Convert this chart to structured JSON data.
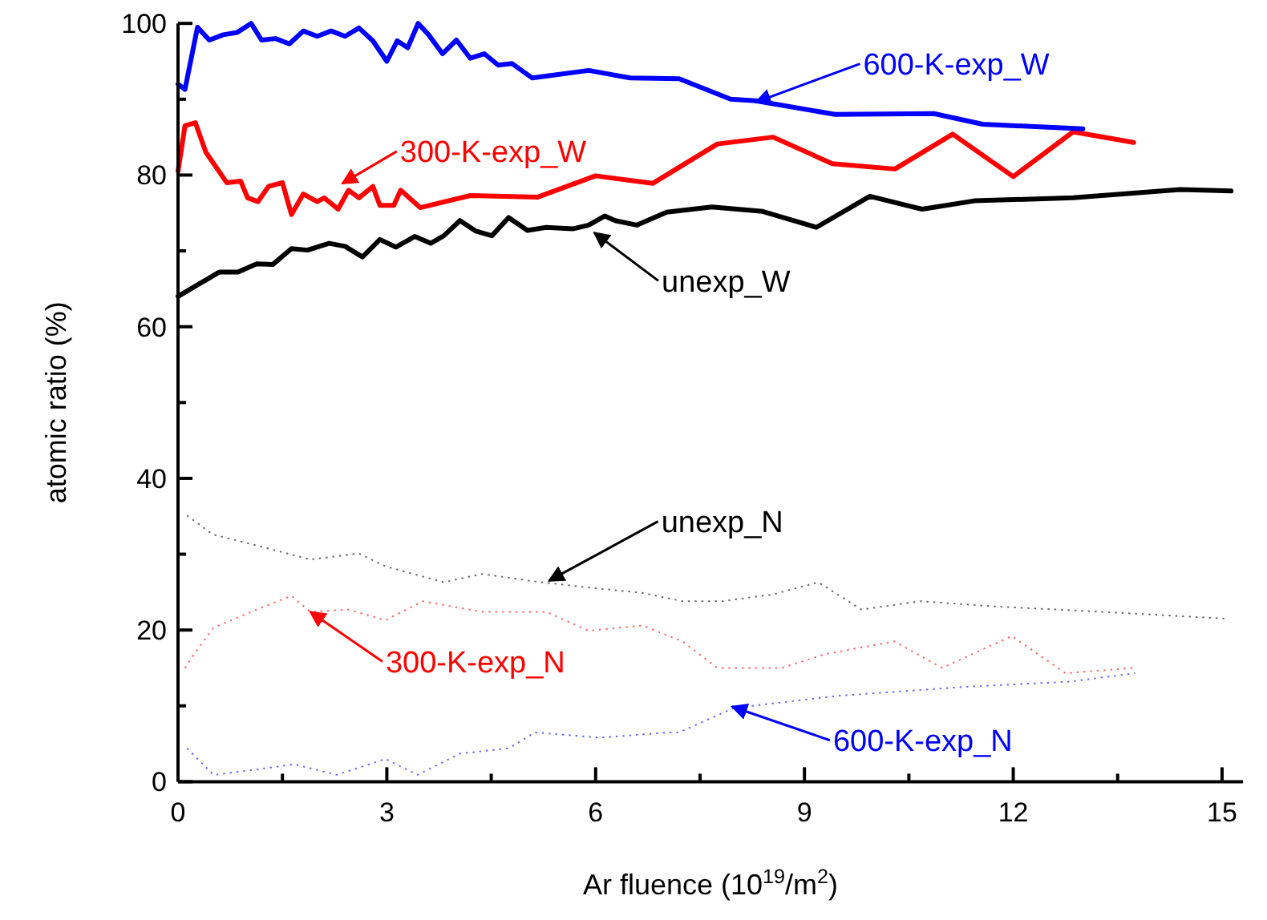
{
  "chart_data": {
    "type": "line",
    "xlabel": "Ar fluence (10$^{19}$/m$^{2}$)",
    "ylabel": "atomic ratio (%)",
    "xlim": [
      0,
      15.3
    ],
    "ylim": [
      0,
      100
    ],
    "xticks": [
      0,
      {
        "value": 1.5,
        "label": null
      },
      3,
      {
        "value": 4.5,
        "label": null
      },
      6,
      {
        "value": 7.5,
        "label": null
      },
      9,
      {
        "value": 10.5,
        "label": null
      },
      12,
      {
        "value": 13.5,
        "label": null
      },
      15
    ],
    "yticks": [
      0,
      {
        "value": 10,
        "label": null
      },
      20,
      {
        "value": 30,
        "label": null
      },
      40,
      {
        "value": 50,
        "label": null
      },
      60,
      {
        "value": 70,
        "label": null
      },
      80,
      {
        "value": 90,
        "label": null
      },
      100
    ],
    "grid": false,
    "series": [
      {
        "color": "#000000",
        "line_style": "solid",
        "x": [
          0,
          0.59,
          0.86,
          1.13,
          1.36,
          1.63,
          1.86,
          2.17,
          2.4,
          2.65,
          2.9,
          3.13,
          3.4,
          3.63,
          3.82,
          4.05,
          4.28,
          4.51,
          4.75,
          5.02,
          5.29,
          5.67,
          5.9,
          6.13,
          6.28,
          6.59,
          7.02,
          7.67,
          8.4,
          9.17,
          9.94,
          10.69,
          11.44,
          12.86,
          14.4,
          15.13
        ],
        "values": [
          64,
          67.2,
          67.2,
          68.3,
          68.2,
          70.3,
          70.1,
          71,
          70.6,
          69.2,
          71.5,
          70.5,
          71.9,
          71,
          72,
          74,
          72.6,
          72,
          74.4,
          72.7,
          73.1,
          72.9,
          73.4,
          74.6,
          74,
          73.4,
          75.1,
          75.8,
          75.2,
          73.1,
          77.2,
          75.5,
          76.6,
          77,
          78.1,
          77.9
        ]
      },
      {
        "color": "#ff0000",
        "line_style": "solid",
        "x": [
          0,
          0.1,
          0.25,
          0.4,
          0.7,
          0.9,
          1.0,
          1.15,
          1.3,
          1.5,
          1.63,
          1.8,
          2.0,
          2.1,
          2.3,
          2.45,
          2.6,
          2.8,
          2.9,
          3.1,
          3.2,
          3.48,
          4.2,
          5.17,
          6.0,
          6.82,
          7.75,
          8.55,
          9.4,
          10.3,
          11.13,
          12.0,
          12.86,
          13.73
        ],
        "values": [
          80.5,
          86.5,
          86.9,
          83,
          79,
          79.2,
          77,
          76.5,
          78.5,
          79,
          74.8,
          77.5,
          76.5,
          77,
          75.5,
          78,
          77,
          78.5,
          76,
          76,
          78,
          75.7,
          77.3,
          77.1,
          79.9,
          78.9,
          84.1,
          85,
          81.5,
          80.8,
          85.4,
          79.8,
          85.7,
          84.3
        ]
      },
      {
        "color": "#0000ff",
        "line_style": "solid",
        "x": [
          0,
          0.1,
          0.28,
          0.45,
          0.65,
          0.85,
          1.05,
          1.2,
          1.4,
          1.6,
          1.8,
          2.0,
          2.2,
          2.4,
          2.6,
          2.8,
          3.0,
          3.15,
          3.3,
          3.45,
          3.6,
          3.8,
          4.0,
          4.2,
          4.4,
          4.6,
          4.8,
          5.09,
          5.9,
          6.5,
          7.2,
          7.94,
          8.3,
          9.44,
          10.86,
          11.56,
          13.0
        ],
        "values": [
          92,
          91.3,
          99.5,
          97.8,
          98.5,
          98.8,
          100,
          97.8,
          98,
          97.3,
          99,
          98.3,
          99,
          98.3,
          99.4,
          97.7,
          95,
          97.7,
          96.8,
          100,
          98.5,
          96,
          97.8,
          95.4,
          96,
          94.5,
          94.7,
          92.8,
          93.8,
          92.8,
          92.7,
          90,
          89.8,
          88,
          88.1,
          86.7,
          86.1
        ]
      },
      {
        "color": "#000000",
        "line_style": "dotted",
        "x": [
          0.13,
          0.5,
          1.28,
          1.9,
          2.6,
          2.98,
          3.82,
          4.37,
          5.13,
          5.9,
          6.67,
          7.25,
          7.82,
          8.55,
          9.2,
          9.82,
          10.67,
          11.75,
          13.28,
          15.05
        ],
        "values": [
          35.1,
          32.6,
          30.8,
          29.3,
          30.1,
          28.4,
          26.3,
          27.4,
          26.4,
          25.6,
          24.9,
          23.8,
          23.8,
          24.7,
          26.3,
          22.7,
          23.8,
          23.1,
          22.4,
          21.5
        ]
      },
      {
        "color": "#ff0000",
        "line_style": "dotted",
        "x": [
          0.1,
          0.25,
          0.51,
          1.13,
          1.63,
          1.9,
          2.44,
          2.98,
          3.52,
          4.37,
          5.29,
          5.9,
          6.67,
          7.25,
          7.75,
          8.67,
          9.29,
          10.29,
          10.98,
          11.98,
          12.75,
          13.73
        ],
        "values": [
          15,
          17.1,
          20.3,
          22.7,
          24.5,
          22.4,
          22.7,
          21.3,
          23.8,
          22.4,
          22.4,
          19.9,
          20.6,
          18.5,
          15,
          15,
          16.8,
          18.5,
          15,
          19.2,
          14.3,
          15
        ]
      },
      {
        "color": "#0000ff",
        "line_style": "dotted",
        "x": [
          0.13,
          0.51,
          1.13,
          1.67,
          2.28,
          2.98,
          3.44,
          4.05,
          4.75,
          5.13,
          6.06,
          7.05,
          7.2,
          7.98,
          9.44,
          11.29,
          12.82,
          13.75
        ],
        "values": [
          4.4,
          0.9,
          1.6,
          2.3,
          0.9,
          3,
          0.9,
          3.7,
          4.4,
          6.5,
          5.8,
          6.5,
          6.5,
          9.7,
          11.3,
          12.5,
          13.2,
          14.3
        ]
      }
    ],
    "annotations": [
      {
        "text": "600-K-exp_W",
        "x": 8.3,
        "y": 89.6
      },
      {
        "text": "300-K-exp_W",
        "x": 2.36,
        "y": 78.9
      },
      {
        "text": "unexp_W",
        "x": 5.98,
        "y": 72.4
      },
      {
        "text": "unexp_N",
        "x": 5.33,
        "y": 26.5
      },
      {
        "text": "300-K-exp_N",
        "x": 1.9,
        "y": 22.4
      },
      {
        "text": "600-K-exp_N",
        "x": 7.96,
        "y": 9.9
      }
    ]
  }
}
